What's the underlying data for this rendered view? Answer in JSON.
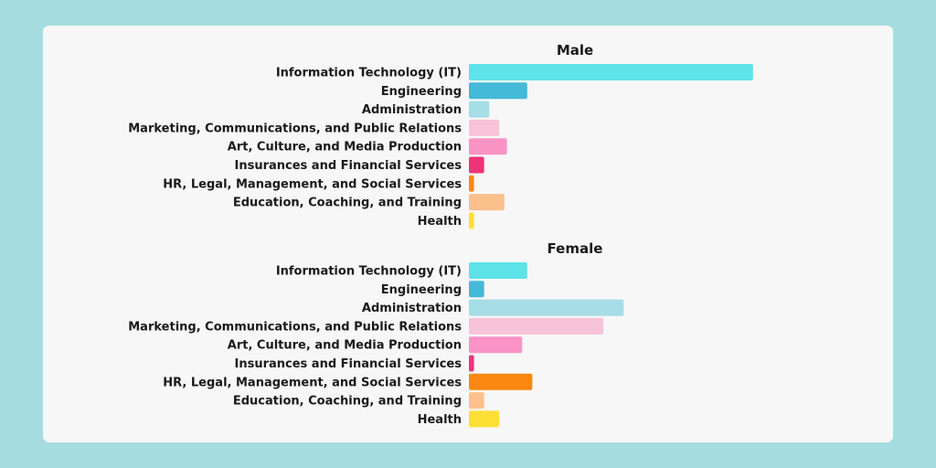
{
  "chart_data": {
    "type": "bar",
    "orientation": "horizontal",
    "categories": [
      "Information Technology (IT)",
      "Engineering",
      "Administration",
      "Marketing, Communications, and Public Relations",
      "Art, Culture, and Media Production",
      "Insurances and Financial Services",
      "HR, Legal, Management, and Social Services",
      "Education, Coaching, and Training",
      "Health"
    ],
    "colors": [
      "#5ee3e8",
      "#45b9d8",
      "#a6dde6",
      "#f7c3d8",
      "#fb93c5",
      "#ee3479",
      "#fb8812",
      "#fbc08c",
      "#fde036"
    ],
    "axis": {
      "xlim": [
        0,
        100
      ],
      "show_axis": false,
      "grid": false,
      "legend": "none"
    },
    "panels": [
      {
        "title": "Male",
        "values": [
          56,
          11.5,
          4,
          6,
          7.5,
          3,
          1,
          7,
          1
        ]
      },
      {
        "title": "Female",
        "values": [
          11.5,
          3,
          30.5,
          26.5,
          10.5,
          1,
          12.5,
          3,
          6
        ]
      }
    ]
  }
}
